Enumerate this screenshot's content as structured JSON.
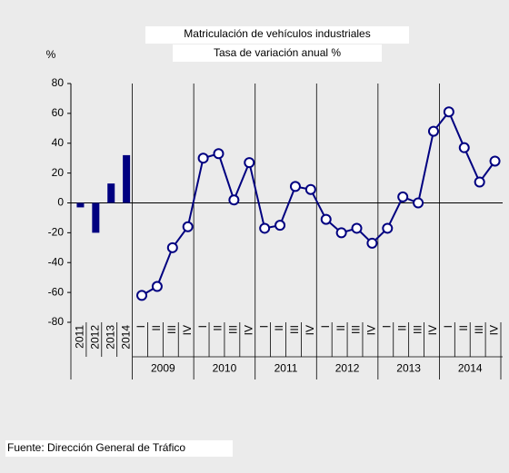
{
  "chart_data": {
    "type": "combo",
    "title": "Matriculación de vehículos industriales",
    "subtitle": "Tasa de variación anual %",
    "y_label": "%",
    "categories": [
      "2011",
      "2012",
      "2013",
      "2014",
      "I",
      "II",
      "III",
      "IV",
      "I",
      "II",
      "III",
      "IV",
      "I",
      "II",
      "III",
      "IV",
      "I",
      "II",
      "III",
      "IV",
      "I",
      "II",
      "III",
      "IV",
      "I",
      "II",
      "III",
      "IV"
    ],
    "groups": [
      "2009",
      "2010",
      "2011",
      "2012",
      "2013",
      "2014"
    ],
    "series": [
      {
        "type": "bar",
        "color": "#000080",
        "values": [
          -3,
          -20,
          13,
          32,
          null,
          null,
          null,
          null,
          null,
          null,
          null,
          null,
          null,
          null,
          null,
          null,
          null,
          null,
          null,
          null,
          null,
          null,
          null,
          null,
          null,
          null,
          null,
          null
        ]
      },
      {
        "type": "line",
        "color": "#000080",
        "values": [
          null,
          null,
          null,
          null,
          -62,
          -56,
          -30,
          -16,
          30,
          33,
          2,
          27,
          -17,
          -15,
          11,
          9,
          -11,
          -20,
          -17,
          -27,
          -17,
          4,
          0,
          48,
          61,
          37,
          14,
          28
        ]
      }
    ],
    "ylim": [
      -80,
      80
    ],
    "yticks": [
      -80,
      -60,
      -40,
      -20,
      0,
      20,
      40,
      60,
      80
    ],
    "source": "Fuente: Dirección General de Tráfico"
  }
}
